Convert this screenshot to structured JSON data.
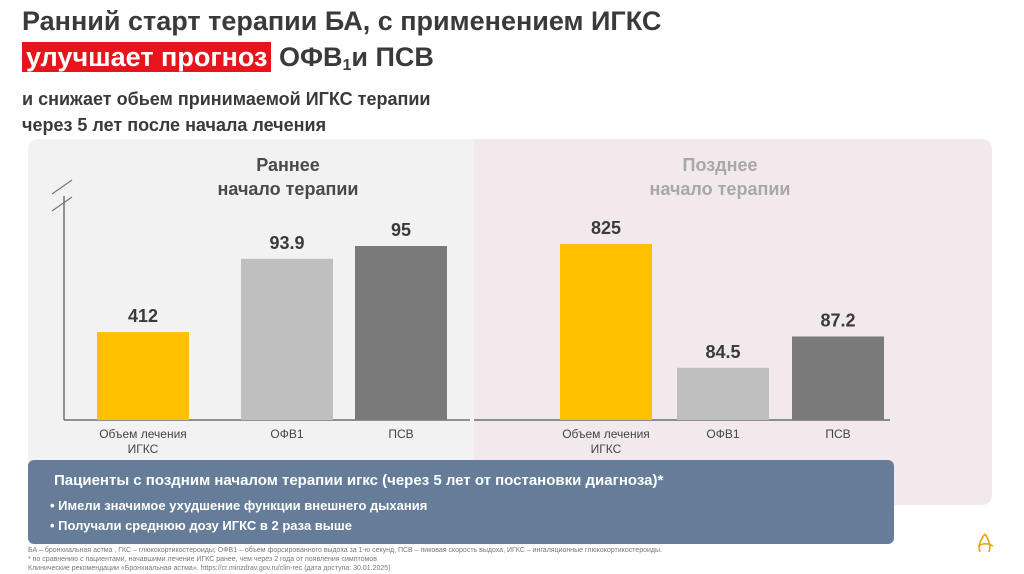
{
  "header": {
    "line1": "Ранний старт терапии БА, с применением ИГКС",
    "line2_highlight": "улучшает прогноз",
    "line2_rest_a": " ОФВ",
    "line2_sub": "1",
    "line2_rest_b": "и ПСВ",
    "line3": "и снижает обьем принимаемой ИГКС терапии",
    "line4": "через 5 лет после начала лечения"
  },
  "groups": {
    "early_title_1": "Раннее",
    "early_title_2": "начало терапии",
    "late_title_1": "Позднее",
    "late_title_2": "начало терапии"
  },
  "chart_data": {
    "type": "bar",
    "groups": [
      "Раннее начало терапии",
      "Позднее начало терапии"
    ],
    "categories": [
      "Объем лечения ИГКС",
      "ОФВ1",
      "ПСВ"
    ],
    "category_labels": [
      [
        "Объем лечения",
        "ИГКС"
      ],
      [
        "ОФВ1"
      ],
      [
        "ПСВ"
      ]
    ],
    "series": [
      {
        "values": [
          412,
          93.9,
          95
        ],
        "labels": [
          "412",
          "93.9",
          "95"
        ]
      },
      {
        "values": [
          825,
          84.5,
          87.2
        ],
        "labels": [
          "825",
          "84.5",
          "87.2"
        ]
      }
    ],
    "axis_break": true,
    "colors": [
      "#ffc000",
      "#bfbfbf",
      "#7a7a7a"
    ]
  },
  "callout": {
    "heading": "Пациенты с поздним началом терапии игкс (через 5 лет от постановки диагноза)*",
    "bullet1": "• Имели значимое ухудшение функции внешнего дыхания",
    "bullet2": "• Получали среднюю дозу ИГКС в 2 раза выше"
  },
  "footnotes": {
    "line1": "БА –  бронхиальная астма , ГКС –  глюкокортикостероиды; ОФВ1 –  объем форсированного выдоха за 1-ю секунд, ПСВ –  пиковая скорость выдоха, ИГКС –  ингаляционные глюкокортикостероиды.",
    "line2": "* по сравнению с пациентами, начавшими лечение ИГКС ранее, чем через 2 года от появления симптомов",
    "line3": "Клинические рекомендации «Бронхиальная астма». https://cr.minzdrav.gov.ru/clin-rec (дата доступа: 30.01.2025)"
  },
  "logo_icon": "astrazeneca-logo-icon"
}
